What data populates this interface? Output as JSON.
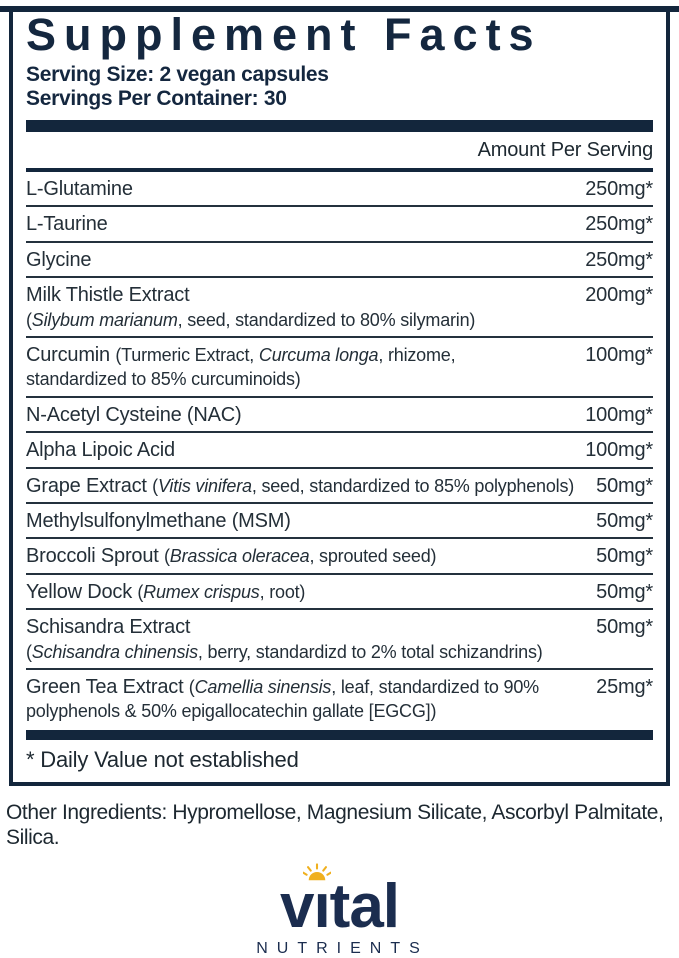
{
  "colors": {
    "navy": "#13263c",
    "body_text": "#242f38",
    "logo_navy": "#1b2d4f",
    "sun_gold": "#f0b01e",
    "background": "#ffffff"
  },
  "label": {
    "title": "Supplement Facts",
    "serving_size": "Serving Size: 2 vegan capsules",
    "servings_per_container": "Servings Per Container: 30",
    "amount_header": "Amount Per Serving",
    "rows": [
      {
        "segments": [
          {
            "t": "L-Glutamine"
          }
        ],
        "amount": "250mg*"
      },
      {
        "segments": [
          {
            "t": "L-Taurine"
          }
        ],
        "amount": "250mg*"
      },
      {
        "segments": [
          {
            "t": "Glycine"
          }
        ],
        "amount": "250mg*"
      },
      {
        "segments": [
          {
            "t": "Milk Thistle Extract"
          },
          {
            "t": "(",
            "s": true,
            "br": true
          },
          {
            "t": "Silybum marianum",
            "s": true,
            "i": true
          },
          {
            "t": ", seed, standardized to 80% silymarin)",
            "s": true
          }
        ],
        "amount": "200mg*"
      },
      {
        "segments": [
          {
            "t": "Curcumin "
          },
          {
            "t": "(Turmeric Extract, ",
            "s": true
          },
          {
            "t": "Curcuma longa",
            "s": true,
            "i": true
          },
          {
            "t": ", rhizome,",
            "s": true
          },
          {
            "t": "standardized to 85% curcuminoids)",
            "s": true,
            "br": true
          }
        ],
        "amount": "100mg*"
      },
      {
        "segments": [
          {
            "t": "N-Acetyl Cysteine (NAC)"
          }
        ],
        "amount": "100mg*"
      },
      {
        "segments": [
          {
            "t": "Alpha Lipoic Acid"
          }
        ],
        "amount": "100mg*"
      },
      {
        "segments": [
          {
            "t": "Grape Extract "
          },
          {
            "t": "(",
            "s": true
          },
          {
            "t": "Vitis vinifera",
            "s": true,
            "i": true
          },
          {
            "t": ", seed, standardized to 85% polyphenols)",
            "s": true
          }
        ],
        "amount": "50mg*"
      },
      {
        "segments": [
          {
            "t": "Methylsulfonylmethane (MSM)"
          }
        ],
        "amount": "50mg*"
      },
      {
        "segments": [
          {
            "t": "Broccoli Sprout "
          },
          {
            "t": "(",
            "s": true
          },
          {
            "t": "Brassica oleracea",
            "s": true,
            "i": true
          },
          {
            "t": ", sprouted seed)",
            "s": true
          }
        ],
        "amount": "50mg*"
      },
      {
        "segments": [
          {
            "t": "Yellow Dock "
          },
          {
            "t": "(",
            "s": true
          },
          {
            "t": "Rumex crispus",
            "s": true,
            "i": true
          },
          {
            "t": ", root)",
            "s": true
          }
        ],
        "amount": "50mg*"
      },
      {
        "segments": [
          {
            "t": "Schisandra Extract"
          },
          {
            "t": "(",
            "s": true,
            "br": true
          },
          {
            "t": "Schisandra chinensis",
            "s": true,
            "i": true
          },
          {
            "t": ", berry, standardizd to 2% total schizandrins)",
            "s": true
          }
        ],
        "amount": "50mg*"
      },
      {
        "segments": [
          {
            "t": "Green Tea Extract "
          },
          {
            "t": "(",
            "s": true
          },
          {
            "t": "Camellia sinensis",
            "s": true,
            "i": true
          },
          {
            "t": ", leaf, standardized to 90%",
            "s": true
          },
          {
            "t": "polyphenols & 50% epigallocatechin gallate [EGCG])",
            "s": true,
            "br": true
          }
        ],
        "amount": "25mg*"
      }
    ],
    "footnote": "* Daily Value not established",
    "other_ingredients": "Other Ingredients: Hypromellose, Magnesium Silicate, Ascorbyl Palmitate, Silica."
  },
  "logo": {
    "word": "vital",
    "word_display": "vıtal",
    "subtext": "NUTRIENTS",
    "icon": "sun-icon"
  }
}
